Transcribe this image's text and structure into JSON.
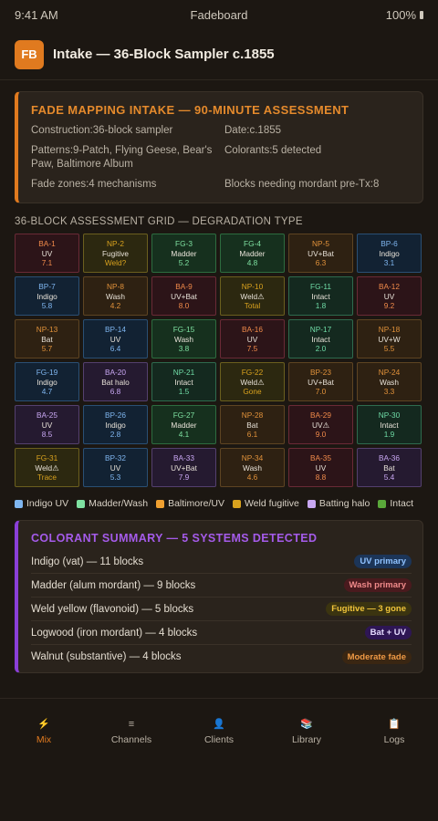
{
  "status": {
    "time": "9:41 AM",
    "app": "Fadeboard",
    "battery": "100%"
  },
  "header": {
    "logo": "FB",
    "title": "Intake — 36-Block Sampler c.1855"
  },
  "intake": {
    "title": "FADE MAPPING INTAKE — 90-MINUTE ASSESSMENT",
    "fields": [
      "Construction:36-block sampler",
      "Date:c.1855",
      "Patterns:9-Patch, Flying Geese, Bear's Paw, Baltimore Album",
      "Colorants:5 detected",
      "Fade zones:4 mechanisms",
      "Blocks needing mordant pre-Tx:8"
    ]
  },
  "grid_label": "36-BLOCK ASSESSMENT GRID — DEGRADATION TYPE",
  "blocks": [
    {
      "id": "BA-1",
      "type": "UV",
      "value": "7.1",
      "cls": "baltred"
    },
    {
      "id": "NP-2",
      "type": "Fugitive",
      "value": "Weld?",
      "cls": "weld"
    },
    {
      "id": "FG-3",
      "type": "Madder",
      "value": "5.2",
      "cls": "madder"
    },
    {
      "id": "FG-4",
      "type": "Madder",
      "value": "4.8",
      "cls": "madder"
    },
    {
      "id": "NP-5",
      "type": "UV+Bat",
      "value": "6.3",
      "cls": "bat"
    },
    {
      "id": "BP-6",
      "type": "Indigo",
      "value": "3.1",
      "cls": "indigo"
    },
    {
      "id": "BP-7",
      "type": "Indigo",
      "value": "5.8",
      "cls": "indigo"
    },
    {
      "id": "NP-8",
      "type": "Wash",
      "value": "4.2",
      "cls": "bat"
    },
    {
      "id": "BA-9",
      "type": "UV+Bat",
      "value": "8.0",
      "cls": "baltred"
    },
    {
      "id": "NP-10",
      "type": "Weld⚠",
      "value": "Total",
      "cls": "weld"
    },
    {
      "id": "FG-11",
      "type": "Intact",
      "value": "1.8",
      "cls": "intact"
    },
    {
      "id": "BA-12",
      "type": "UV",
      "value": "9.2",
      "cls": "baltred"
    },
    {
      "id": "NP-13",
      "type": "Bat",
      "value": "5.7",
      "cls": "bat"
    },
    {
      "id": "BP-14",
      "type": "UV",
      "value": "6.4",
      "cls": "indigo"
    },
    {
      "id": "FG-15",
      "type": "Wash",
      "value": "3.8",
      "cls": "madder"
    },
    {
      "id": "BA-16",
      "type": "UV",
      "value": "7.5",
      "cls": "baltred"
    },
    {
      "id": "NP-17",
      "type": "Intact",
      "value": "2.0",
      "cls": "intact"
    },
    {
      "id": "NP-18",
      "type": "UV+W",
      "value": "5.5",
      "cls": "bat"
    },
    {
      "id": "FG-19",
      "type": "Indigo",
      "value": "4.7",
      "cls": "indigo"
    },
    {
      "id": "BA-20",
      "type": "Bat halo",
      "value": "6.8",
      "cls": "halo"
    },
    {
      "id": "NP-21",
      "type": "Intact",
      "value": "1.5",
      "cls": "intact"
    },
    {
      "id": "FG-22",
      "type": "Weld⚠",
      "value": "Gone",
      "cls": "weld"
    },
    {
      "id": "BP-23",
      "type": "UV+Bat",
      "value": "7.0",
      "cls": "bat"
    },
    {
      "id": "NP-24",
      "type": "Wash",
      "value": "3.3",
      "cls": "bat"
    },
    {
      "id": "BA-25",
      "type": "UV",
      "value": "8.5",
      "cls": "halo"
    },
    {
      "id": "BP-26",
      "type": "Indigo",
      "value": "2.8",
      "cls": "indigo"
    },
    {
      "id": "FG-27",
      "type": "Madder",
      "value": "4.1",
      "cls": "madder"
    },
    {
      "id": "NP-28",
      "type": "Bat",
      "value": "6.1",
      "cls": "bat"
    },
    {
      "id": "BA-29",
      "type": "UV⚠",
      "value": "9.0",
      "cls": "baltred"
    },
    {
      "id": "NP-30",
      "type": "Intact",
      "value": "1.9",
      "cls": "intact"
    },
    {
      "id": "FG-31",
      "type": "Weld⚠",
      "value": "Trace",
      "cls": "weld"
    },
    {
      "id": "BP-32",
      "type": "UV",
      "value": "5.3",
      "cls": "indigo"
    },
    {
      "id": "BA-33",
      "type": "UV+Bat",
      "value": "7.9",
      "cls": "halo"
    },
    {
      "id": "NP-34",
      "type": "Wash",
      "value": "4.6",
      "cls": "bat"
    },
    {
      "id": "BA-35",
      "type": "UV",
      "value": "8.8",
      "cls": "baltred"
    },
    {
      "id": "BA-36",
      "type": "Bat",
      "value": "5.4",
      "cls": "halo"
    }
  ],
  "legend": [
    {
      "label": "Indigo UV",
      "color": "#7fb6f0"
    },
    {
      "label": "Madder/Wash",
      "color": "#7ee0a0"
    },
    {
      "label": "Baltimore/UV",
      "color": "#f0a030"
    },
    {
      "label": "Weld fugitive",
      "color": "#d9a21e"
    },
    {
      "label": "Batting halo",
      "color": "#c8a7f2"
    },
    {
      "label": "Intact",
      "color": "#5aa83a"
    }
  ],
  "colorants": {
    "title": "COLORANT SUMMARY — 5 SYSTEMS DETECTED",
    "rows": [
      {
        "label": "Indigo (vat) — 11 blocks",
        "badge": "UV primary",
        "cls": "uv"
      },
      {
        "label": "Madder (alum mordant) — 9 blocks",
        "badge": "Wash primary",
        "cls": "wash"
      },
      {
        "label": "Weld yellow (flavonoid) — 5 blocks",
        "badge": "Fugitive — 3 gone",
        "cls": "fug"
      },
      {
        "label": "Logwood (iron mordant) — 4 blocks",
        "badge": "Bat + UV",
        "cls": "batuv"
      },
      {
        "label": "Walnut (substantive) — 4 blocks",
        "badge": "Moderate fade",
        "cls": "mod"
      }
    ]
  },
  "tabs": [
    {
      "label": "Mix",
      "icon": "⚡",
      "active": true
    },
    {
      "label": "Channels",
      "icon": "≡",
      "active": false
    },
    {
      "label": "Clients",
      "icon": "👤",
      "active": false
    },
    {
      "label": "Library",
      "icon": "📚",
      "active": false
    },
    {
      "label": "Logs",
      "icon": "📋",
      "active": false
    }
  ]
}
